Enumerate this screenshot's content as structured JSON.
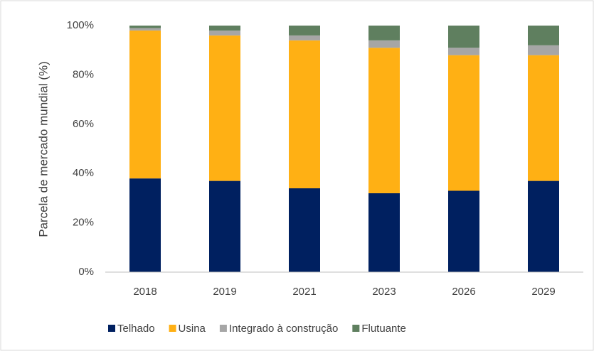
{
  "chart_data": {
    "type": "stacked_bar",
    "y_label": "Parcela de mercado mundial (%)",
    "categories": [
      "2018",
      "2019",
      "2021",
      "2023",
      "2026",
      "2029"
    ],
    "series": [
      {
        "name": "Telhado",
        "color": "#002060",
        "values": [
          38,
          37,
          34,
          32,
          33,
          37
        ]
      },
      {
        "name": "Usina",
        "color": "#ffb014",
        "values": [
          60,
          59,
          60,
          59,
          55,
          51
        ]
      },
      {
        "name": "Integrado à construção",
        "color": "#a6a6a6",
        "values": [
          1,
          2,
          2,
          3,
          3,
          4
        ]
      },
      {
        "name": "Flutuante",
        "color": "#5f7f5f",
        "values": [
          1,
          2,
          4,
          6,
          9,
          8
        ]
      }
    ],
    "ylim": [
      0,
      100
    ],
    "yticks": [
      {
        "value": 0,
        "label": "0%"
      },
      {
        "value": 20,
        "label": "20%"
      },
      {
        "value": 40,
        "label": "40%"
      },
      {
        "value": 60,
        "label": "60%"
      },
      {
        "value": 80,
        "label": "80%"
      },
      {
        "value": 100,
        "label": "100%"
      }
    ],
    "grid": false,
    "legend": "bottom"
  }
}
